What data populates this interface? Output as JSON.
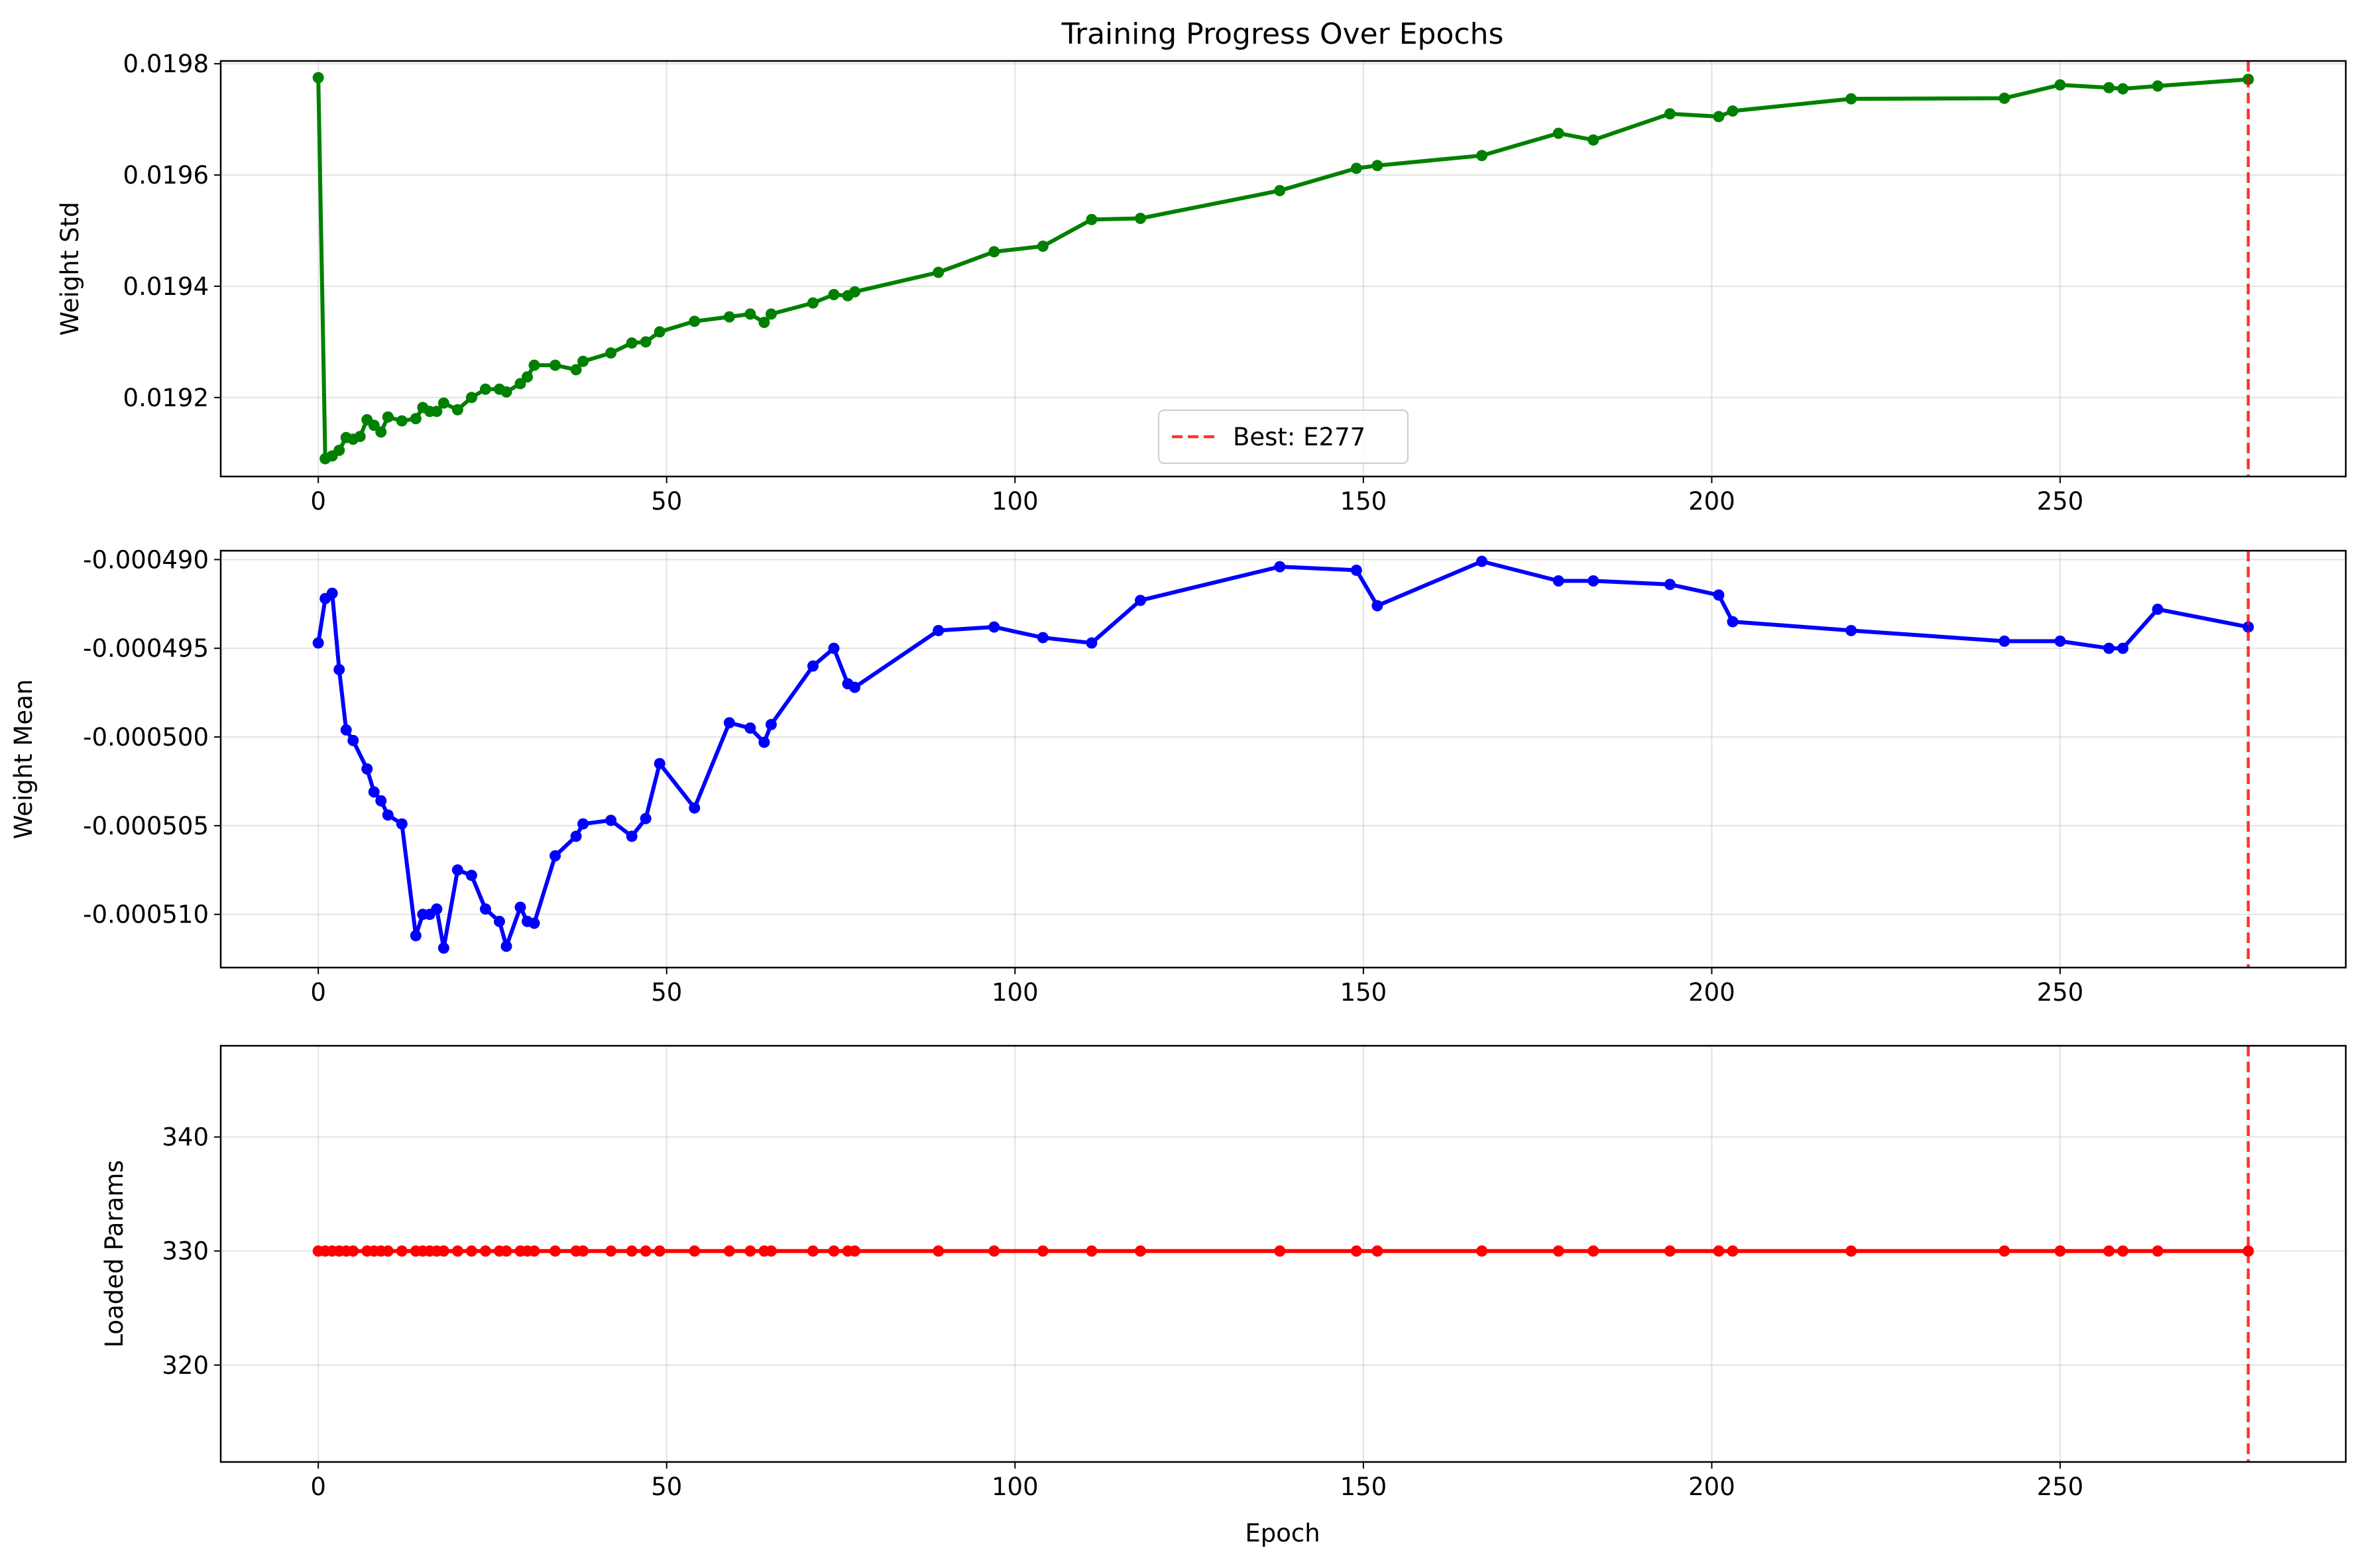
{
  "chart_data": [
    {
      "type": "line",
      "title": "Training Progress Over Epochs",
      "xlabel": "",
      "ylabel": "Weight Std",
      "xlim": [
        -14,
        291
      ],
      "ylim": [
        0.019058,
        0.019805
      ],
      "xticks": [
        0,
        50,
        100,
        150,
        200,
        250
      ],
      "xtick_labels": [
        "0",
        "50",
        "100",
        "150",
        "200",
        "250"
      ],
      "yticks": [
        0.0192,
        0.0194,
        0.0196,
        0.0198
      ],
      "ytick_labels": [
        "0.0192",
        "0.0194",
        "0.0196",
        "0.0198"
      ],
      "grid": true,
      "color": "#008000",
      "legend": {
        "position": "lower-center",
        "entries": [
          {
            "label": "Best: E277",
            "color": "#ff0000",
            "style": "dashed"
          }
        ]
      },
      "best_epoch": 277,
      "series": [
        {
          "x": [
            0,
            1,
            2,
            3,
            4,
            5,
            6,
            7,
            8,
            9,
            10,
            12,
            14,
            15,
            16,
            17,
            18,
            20,
            22,
            24,
            26,
            27,
            29,
            30,
            31,
            34,
            37,
            38,
            42,
            45,
            47,
            49,
            54,
            59,
            62,
            64,
            65,
            71,
            74,
            76,
            77,
            89,
            97,
            104,
            111,
            118,
            138,
            149,
            152,
            167,
            178,
            183,
            194,
            201,
            203,
            220,
            242,
            250,
            257,
            259,
            264,
            277
          ],
          "y": [
            0.019775,
            0.01909,
            0.019095,
            0.019105,
            0.019128,
            0.019125,
            0.01913,
            0.01916,
            0.01915,
            0.019138,
            0.019165,
            0.019158,
            0.019162,
            0.019182,
            0.019175,
            0.019175,
            0.01919,
            0.019178,
            0.0192,
            0.019215,
            0.019215,
            0.01921,
            0.019225,
            0.019237,
            0.019258,
            0.019258,
            0.01925,
            0.019265,
            0.01928,
            0.019298,
            0.0193,
            0.019318,
            0.019337,
            0.019345,
            0.01935,
            0.019335,
            0.01935,
            0.01937,
            0.019385,
            0.019383,
            0.01939,
            0.019425,
            0.019462,
            0.019472,
            0.01952,
            0.019522,
            0.019572,
            0.019612,
            0.019617,
            0.019635,
            0.019675,
            0.019663,
            0.01971,
            0.019705,
            0.019715,
            0.019737,
            0.019738,
            0.019762,
            0.019757,
            0.019755,
            0.01976,
            0.019772
          ]
        }
      ]
    },
    {
      "type": "line",
      "title": "",
      "xlabel": "",
      "ylabel": "Weight Mean",
      "xlim": [
        -14,
        291
      ],
      "ylim": [
        -0.000513,
        -0.0004895
      ],
      "xticks": [
        0,
        50,
        100,
        150,
        200,
        250
      ],
      "xtick_labels": [
        "0",
        "50",
        "100",
        "150",
        "200",
        "250"
      ],
      "yticks": [
        -0.00049,
        -0.000495,
        -0.0005,
        -0.000505,
        -0.00051
      ],
      "ytick_labels": [
        "-0.000490",
        "-0.000495",
        "-0.000500",
        "-0.000505",
        "-0.000510"
      ],
      "grid": true,
      "color": "#0000ff",
      "best_epoch": 277,
      "series": [
        {
          "x": [
            0,
            1,
            2,
            3,
            4,
            5,
            7,
            8,
            9,
            10,
            12,
            14,
            15,
            16,
            17,
            18,
            20,
            22,
            24,
            26,
            27,
            29,
            30,
            31,
            34,
            37,
            38,
            42,
            45,
            47,
            49,
            54,
            59,
            62,
            64,
            65,
            71,
            74,
            76,
            77,
            89,
            97,
            104,
            111,
            118,
            138,
            149,
            152,
            167,
            178,
            183,
            194,
            201,
            203,
            220,
            242,
            250,
            257,
            259,
            264,
            277
          ],
          "y": [
            -0.0004947,
            -0.0004922,
            -0.0004919,
            -0.0004962,
            -0.0004996,
            -0.0005002,
            -0.0005018,
            -0.0005031,
            -0.0005036,
            -0.0005044,
            -0.0005049,
            -0.0005112,
            -0.00051,
            -0.00051,
            -0.0005097,
            -0.0005119,
            -0.0005075,
            -0.0005078,
            -0.0005097,
            -0.0005104,
            -0.0005118,
            -0.0005096,
            -0.0005104,
            -0.0005105,
            -0.0005067,
            -0.0005056,
            -0.0005049,
            -0.0005047,
            -0.0005056,
            -0.0005046,
            -0.0005015,
            -0.000504,
            -0.0004992,
            -0.0004995,
            -0.0005003,
            -0.0004993,
            -0.000496,
            -0.000495,
            -0.000497,
            -0.0004972,
            -0.000494,
            -0.0004938,
            -0.0004944,
            -0.0004947,
            -0.0004923,
            -0.0004904,
            -0.0004906,
            -0.0004926,
            -0.0004901,
            -0.0004912,
            -0.0004912,
            -0.0004914,
            -0.000492,
            -0.0004935,
            -0.000494,
            -0.0004946,
            -0.0004946,
            -0.000495,
            -0.000495,
            -0.0004928,
            -0.0004938
          ]
        }
      ]
    },
    {
      "type": "line",
      "title": "",
      "xlabel": "Epoch",
      "ylabel": "Loaded Params",
      "xlim": [
        -14,
        291
      ],
      "ylim": [
        311.5,
        348.0
      ],
      "xticks": [
        0,
        50,
        100,
        150,
        200,
        250
      ],
      "xtick_labels": [
        "0",
        "50",
        "100",
        "150",
        "200",
        "250"
      ],
      "yticks": [
        320,
        330,
        340
      ],
      "ytick_labels": [
        "320",
        "330",
        "340"
      ],
      "grid": true,
      "color": "#ff0000",
      "best_epoch": 277,
      "series": [
        {
          "x": [
            0,
            1,
            2,
            3,
            4,
            5,
            7,
            8,
            9,
            10,
            12,
            14,
            15,
            16,
            17,
            18,
            20,
            22,
            24,
            26,
            27,
            29,
            30,
            31,
            34,
            37,
            38,
            42,
            45,
            47,
            49,
            54,
            59,
            62,
            64,
            65,
            71,
            74,
            76,
            77,
            89,
            97,
            104,
            111,
            118,
            138,
            149,
            152,
            167,
            178,
            183,
            194,
            201,
            203,
            220,
            242,
            250,
            257,
            259,
            264,
            277
          ],
          "y": [
            330,
            330,
            330,
            330,
            330,
            330,
            330,
            330,
            330,
            330,
            330,
            330,
            330,
            330,
            330,
            330,
            330,
            330,
            330,
            330,
            330,
            330,
            330,
            330,
            330,
            330,
            330,
            330,
            330,
            330,
            330,
            330,
            330,
            330,
            330,
            330,
            330,
            330,
            330,
            330,
            330,
            330,
            330,
            330,
            330,
            330,
            330,
            330,
            330,
            330,
            330,
            330,
            330,
            330,
            330,
            330,
            330,
            330,
            330,
            330,
            330
          ]
        }
      ]
    }
  ]
}
